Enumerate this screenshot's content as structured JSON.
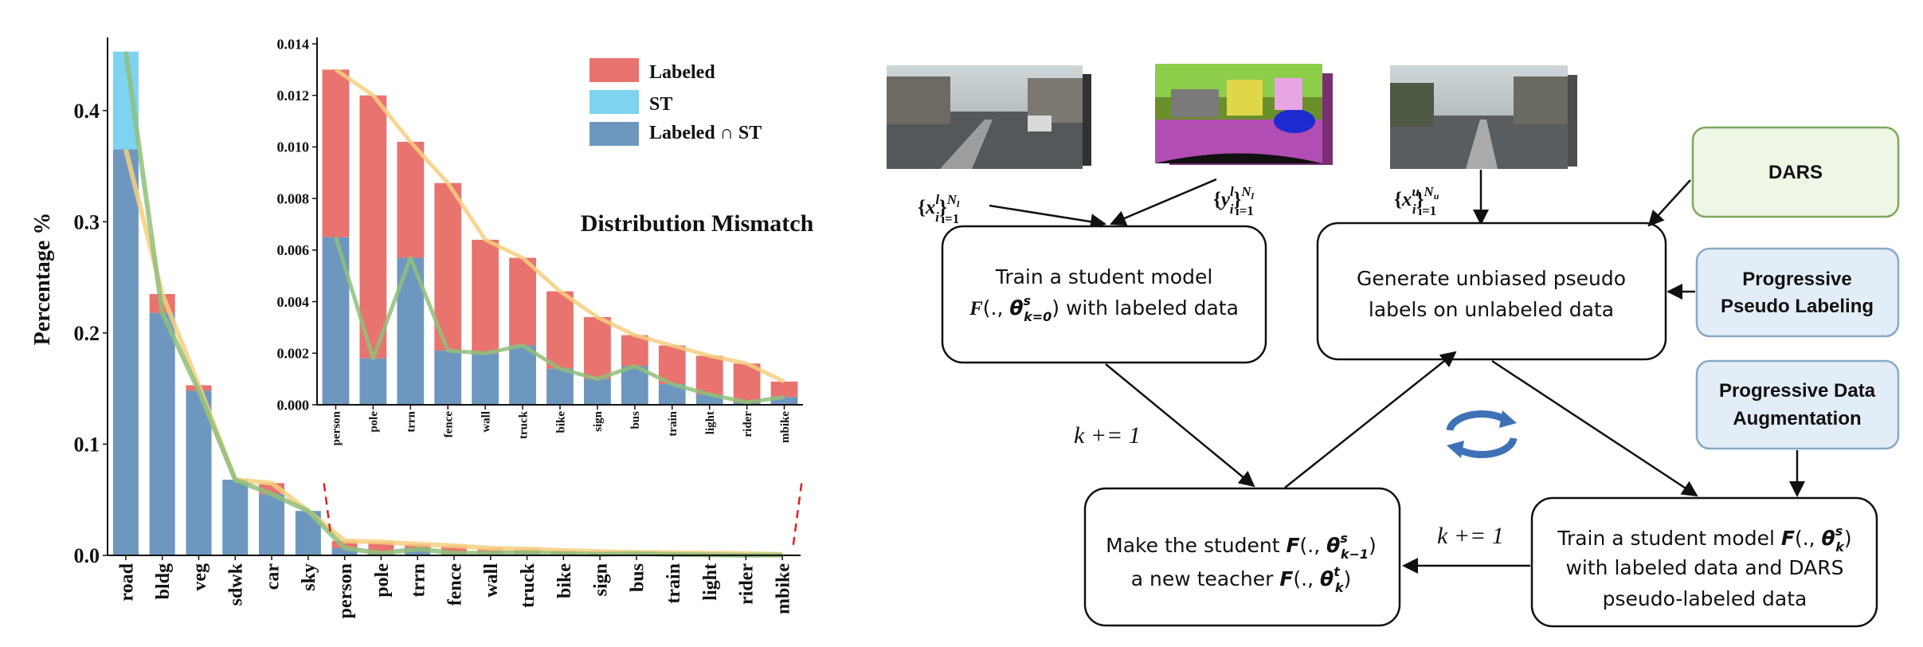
{
  "chart_data": [
    {
      "type": "bar",
      "name": "main",
      "categories": [
        "road",
        "bldg",
        "veg",
        "sdwk",
        "car",
        "sky",
        "person",
        "pole",
        "trrn",
        "fence",
        "wall",
        "truck",
        "bike",
        "sign",
        "bus",
        "train",
        "light",
        "rider",
        "mbike"
      ],
      "series": [
        {
          "name": "Labeled",
          "values": [
            0.365,
            0.235,
            0.153,
            0.068,
            0.065,
            0.04,
            0.013,
            0.012,
            0.0102,
            0.0086,
            0.0064,
            0.0057,
            0.0044,
            0.0034,
            0.0027,
            0.0023,
            0.0019,
            0.0016,
            0.0009
          ]
        },
        {
          "name": "ST",
          "values": [
            0.453,
            0.218,
            0.148,
            0.068,
            0.055,
            0.04,
            0.0065,
            0.0018,
            0.0057,
            0.0021,
            0.002,
            0.0023,
            0.0014,
            0.001,
            0.0015,
            0.0008,
            0.0004,
            0.0001,
            0.0003
          ]
        },
        {
          "name": "Labeled ∩ ST",
          "values": [
            0.365,
            0.218,
            0.148,
            0.068,
            0.055,
            0.04,
            0.0065,
            0.0018,
            0.0057,
            0.0021,
            0.002,
            0.0023,
            0.0014,
            0.001,
            0.0015,
            0.0008,
            0.0004,
            0.0001,
            0.0003
          ]
        }
      ],
      "ylabel": "Percentage %",
      "ylim": [
        0,
        0.46
      ],
      "yticks": [
        "0.0",
        "0.1",
        "0.2",
        "0.3",
        "0.4"
      ]
    },
    {
      "type": "bar",
      "name": "inset",
      "categories": [
        "person",
        "pole",
        "trrn",
        "fence",
        "wall",
        "truck",
        "bike",
        "sign",
        "bus",
        "train",
        "light",
        "rider",
        "mbike"
      ],
      "series": [
        {
          "name": "Labeled",
          "values": [
            0.013,
            0.012,
            0.0102,
            0.0086,
            0.0064,
            0.0057,
            0.0044,
            0.0034,
            0.0027,
            0.0023,
            0.0019,
            0.0016,
            0.0009
          ]
        },
        {
          "name": "Labeled ∩ ST",
          "values": [
            0.0065,
            0.0018,
            0.0057,
            0.0021,
            0.002,
            0.0023,
            0.0014,
            0.001,
            0.0015,
            0.0008,
            0.0004,
            0.0001,
            0.0003
          ]
        }
      ],
      "ylim": [
        0,
        0.014
      ],
      "yticks": [
        "0.000",
        "0.002",
        "0.004",
        "0.006",
        "0.008",
        "0.010",
        "0.012",
        "0.014"
      ],
      "annotation": "Distribution Mismatch"
    }
  ],
  "legend": {
    "labeled": "Labeled",
    "st": "ST",
    "intersect": "Labeled ∩ ST"
  },
  "colors": {
    "labeled": "#e8736f",
    "st": "#7dd3f0",
    "intersect": "#6d97bf",
    "labeled_curve": "#f6cf7f",
    "st_curve": "#8fbf7a",
    "dars_box": "#eef6e6",
    "dars_border": "#7ea85c",
    "blue_box": "#e3edf7",
    "blue_border": "#88a9c8"
  },
  "diagram": {
    "images": {
      "labeled_x": "{x_i^l}_{i=1}^{N_l}",
      "labeled_y": "{y_i^l}_{i=1}^{N_l}",
      "unlabeled_x": "{x_i^u}_{i=1}^{N_u}"
    },
    "box_train_labeled": [
      "Train a student model",
      "F(., θ^s_{k=0}) with labeled data"
    ],
    "box_generate": [
      "Generate unbiased pseudo",
      "labels on unlabeled data"
    ],
    "box_teacher": [
      "Make the student F(., θ^s_{k−1})",
      "a new teacher F(., θ^t_k)"
    ],
    "box_train_dars": [
      "Train a student model F(., θ^s_k)",
      "with labeled data and DARS",
      "pseudo-labeled data"
    ],
    "dars": "DARS",
    "progressive_pseudo": [
      "Progressive",
      "Pseudo Labeling"
    ],
    "progressive_aug": [
      "Progressive Data",
      "Augmentation"
    ],
    "k_increment_1": "k += 1",
    "k_increment_2": "k += 1",
    "cycle_icon": "refresh-cycle-icon"
  }
}
